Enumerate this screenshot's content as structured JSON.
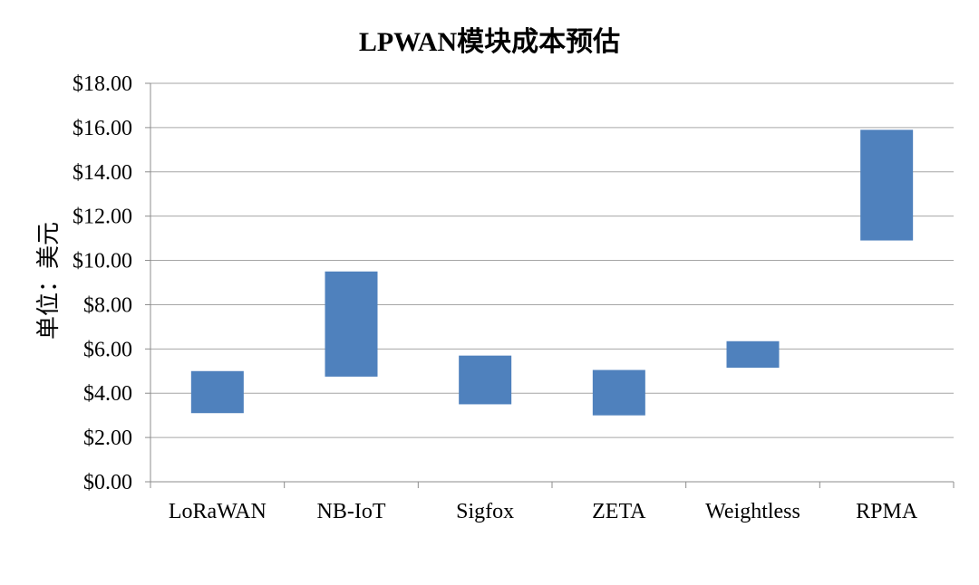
{
  "chart_data": {
    "type": "bar",
    "title": "LPWAN模块成本预估",
    "xlabel": "",
    "ylabel": "单位：美元",
    "categories": [
      "LoRaWAN",
      "NB-IoT",
      "Sigfox",
      "ZETA",
      "Weightless",
      "RPMA"
    ],
    "ranges": [
      {
        "low": 3.1,
        "high": 5.0
      },
      {
        "low": 4.75,
        "high": 9.5
      },
      {
        "low": 3.5,
        "high": 5.7
      },
      {
        "low": 3.0,
        "high": 5.05
      },
      {
        "low": 5.15,
        "high": 6.35
      },
      {
        "low": 10.9,
        "high": 15.9
      }
    ],
    "ylim": [
      0,
      18
    ],
    "ytick_labels": [
      "$0.00",
      "$2.00",
      "$4.00",
      "$6.00",
      "$8.00",
      "$10.00",
      "$12.00",
      "$14.00",
      "$16.00",
      "$18.00"
    ],
    "grid": true,
    "bar_color": "#4f81bd",
    "grid_color": "#a6a6a6"
  }
}
